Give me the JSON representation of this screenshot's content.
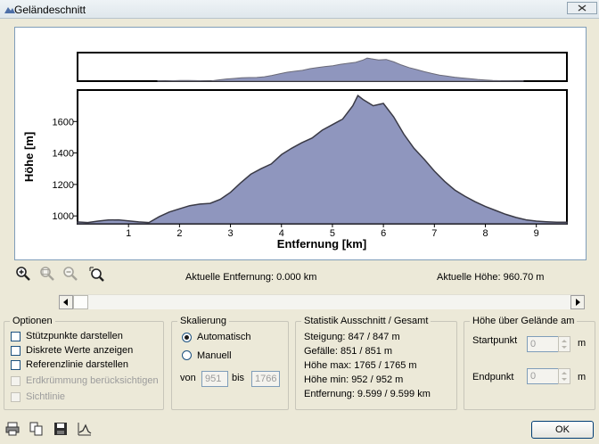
{
  "window": {
    "title": "Geländeschnitt"
  },
  "chart": {
    "ylabel": "Höhe [m]",
    "xlabel": "Entfernung [km]",
    "yticks": [
      "1000",
      "1200",
      "1400",
      "1600"
    ],
    "xticks": [
      "1",
      "2",
      "3",
      "4",
      "5",
      "6",
      "7",
      "8",
      "9"
    ],
    "fill_color": "#8f96be",
    "line_color": "#3a3a46",
    "grid": false
  },
  "chart_data": {
    "type": "area",
    "title": "",
    "xlabel": "Entfernung [km]",
    "ylabel": "Höhe [m]",
    "xlim": [
      0,
      9.6
    ],
    "ylim": [
      950,
      1800
    ],
    "x": [
      0,
      0.2,
      0.4,
      0.6,
      0.8,
      1.0,
      1.2,
      1.4,
      1.6,
      1.8,
      2.0,
      2.2,
      2.4,
      2.6,
      2.8,
      3.0,
      3.2,
      3.4,
      3.6,
      3.8,
      4.0,
      4.2,
      4.4,
      4.6,
      4.8,
      5.0,
      5.2,
      5.4,
      5.5,
      5.6,
      5.8,
      6.0,
      6.2,
      6.4,
      6.6,
      6.8,
      7.0,
      7.2,
      7.4,
      7.6,
      7.8,
      8.0,
      8.2,
      8.4,
      8.6,
      8.8,
      9.0,
      9.2,
      9.4,
      9.599
    ],
    "y": [
      962,
      958,
      967,
      974,
      975,
      968,
      962,
      958,
      995,
      1025,
      1045,
      1065,
      1075,
      1080,
      1105,
      1150,
      1210,
      1265,
      1300,
      1330,
      1390,
      1430,
      1465,
      1495,
      1545,
      1580,
      1615,
      1700,
      1765,
      1740,
      1700,
      1715,
      1630,
      1520,
      1430,
      1360,
      1285,
      1220,
      1165,
      1125,
      1090,
      1060,
      1035,
      1010,
      990,
      975,
      967,
      963,
      960,
      960
    ]
  },
  "overview": {
    "fill_color": "#8f96be"
  },
  "toolbar": [
    "zoom-in-icon",
    "zoom-prev-icon",
    "zoom-out-icon",
    "zoom-reset-icon"
  ],
  "status": {
    "entfernung": "Aktuelle Entfernung: 0.000 km",
    "hoehe": "Aktuelle Höhe: 960.70 m"
  },
  "optionen": {
    "title": "Optionen",
    "items": [
      {
        "label": "Stützpunkte darstellen",
        "checked": false,
        "enabled": true
      },
      {
        "label": "Diskrete Werte anzeigen",
        "checked": false,
        "enabled": true
      },
      {
        "label": "Referenzlinie darstellen",
        "checked": false,
        "enabled": true
      },
      {
        "label": "Erdkrümmung berücksichtigen",
        "checked": false,
        "enabled": false
      },
      {
        "label": "Sichtlinie",
        "checked": false,
        "enabled": false
      }
    ]
  },
  "skalierung": {
    "title": "Skalierung",
    "auto_label": "Automatisch",
    "manual_label": "Manuell",
    "von_label": "von",
    "von_value": "951",
    "bis_label": "bis",
    "bis_value": "1766"
  },
  "statistik": {
    "title": "Statistik  Ausschnitt / Gesamt",
    "lines": [
      "Steigung: 847 / 847 m",
      "Gefälle: 851 / 851 m",
      "Höhe max: 1765 / 1765 m",
      "Höhe min: 952 / 952 m",
      "Entfernung: 9.599 / 9.599 km"
    ]
  },
  "hoehe_gelaende": {
    "title": "Höhe über Gelände am",
    "startpunkt_label": "Startpunkt",
    "startpunkt_value": "0",
    "startpunkt_unit": "m",
    "endpunkt_label": "Endpunkt",
    "endpunkt_value": "0",
    "endpunkt_unit": "m"
  },
  "bottom_icons": [
    "print-icon",
    "copy-icon",
    "save-icon",
    "profile-icon"
  ],
  "ok_label": "OK"
}
